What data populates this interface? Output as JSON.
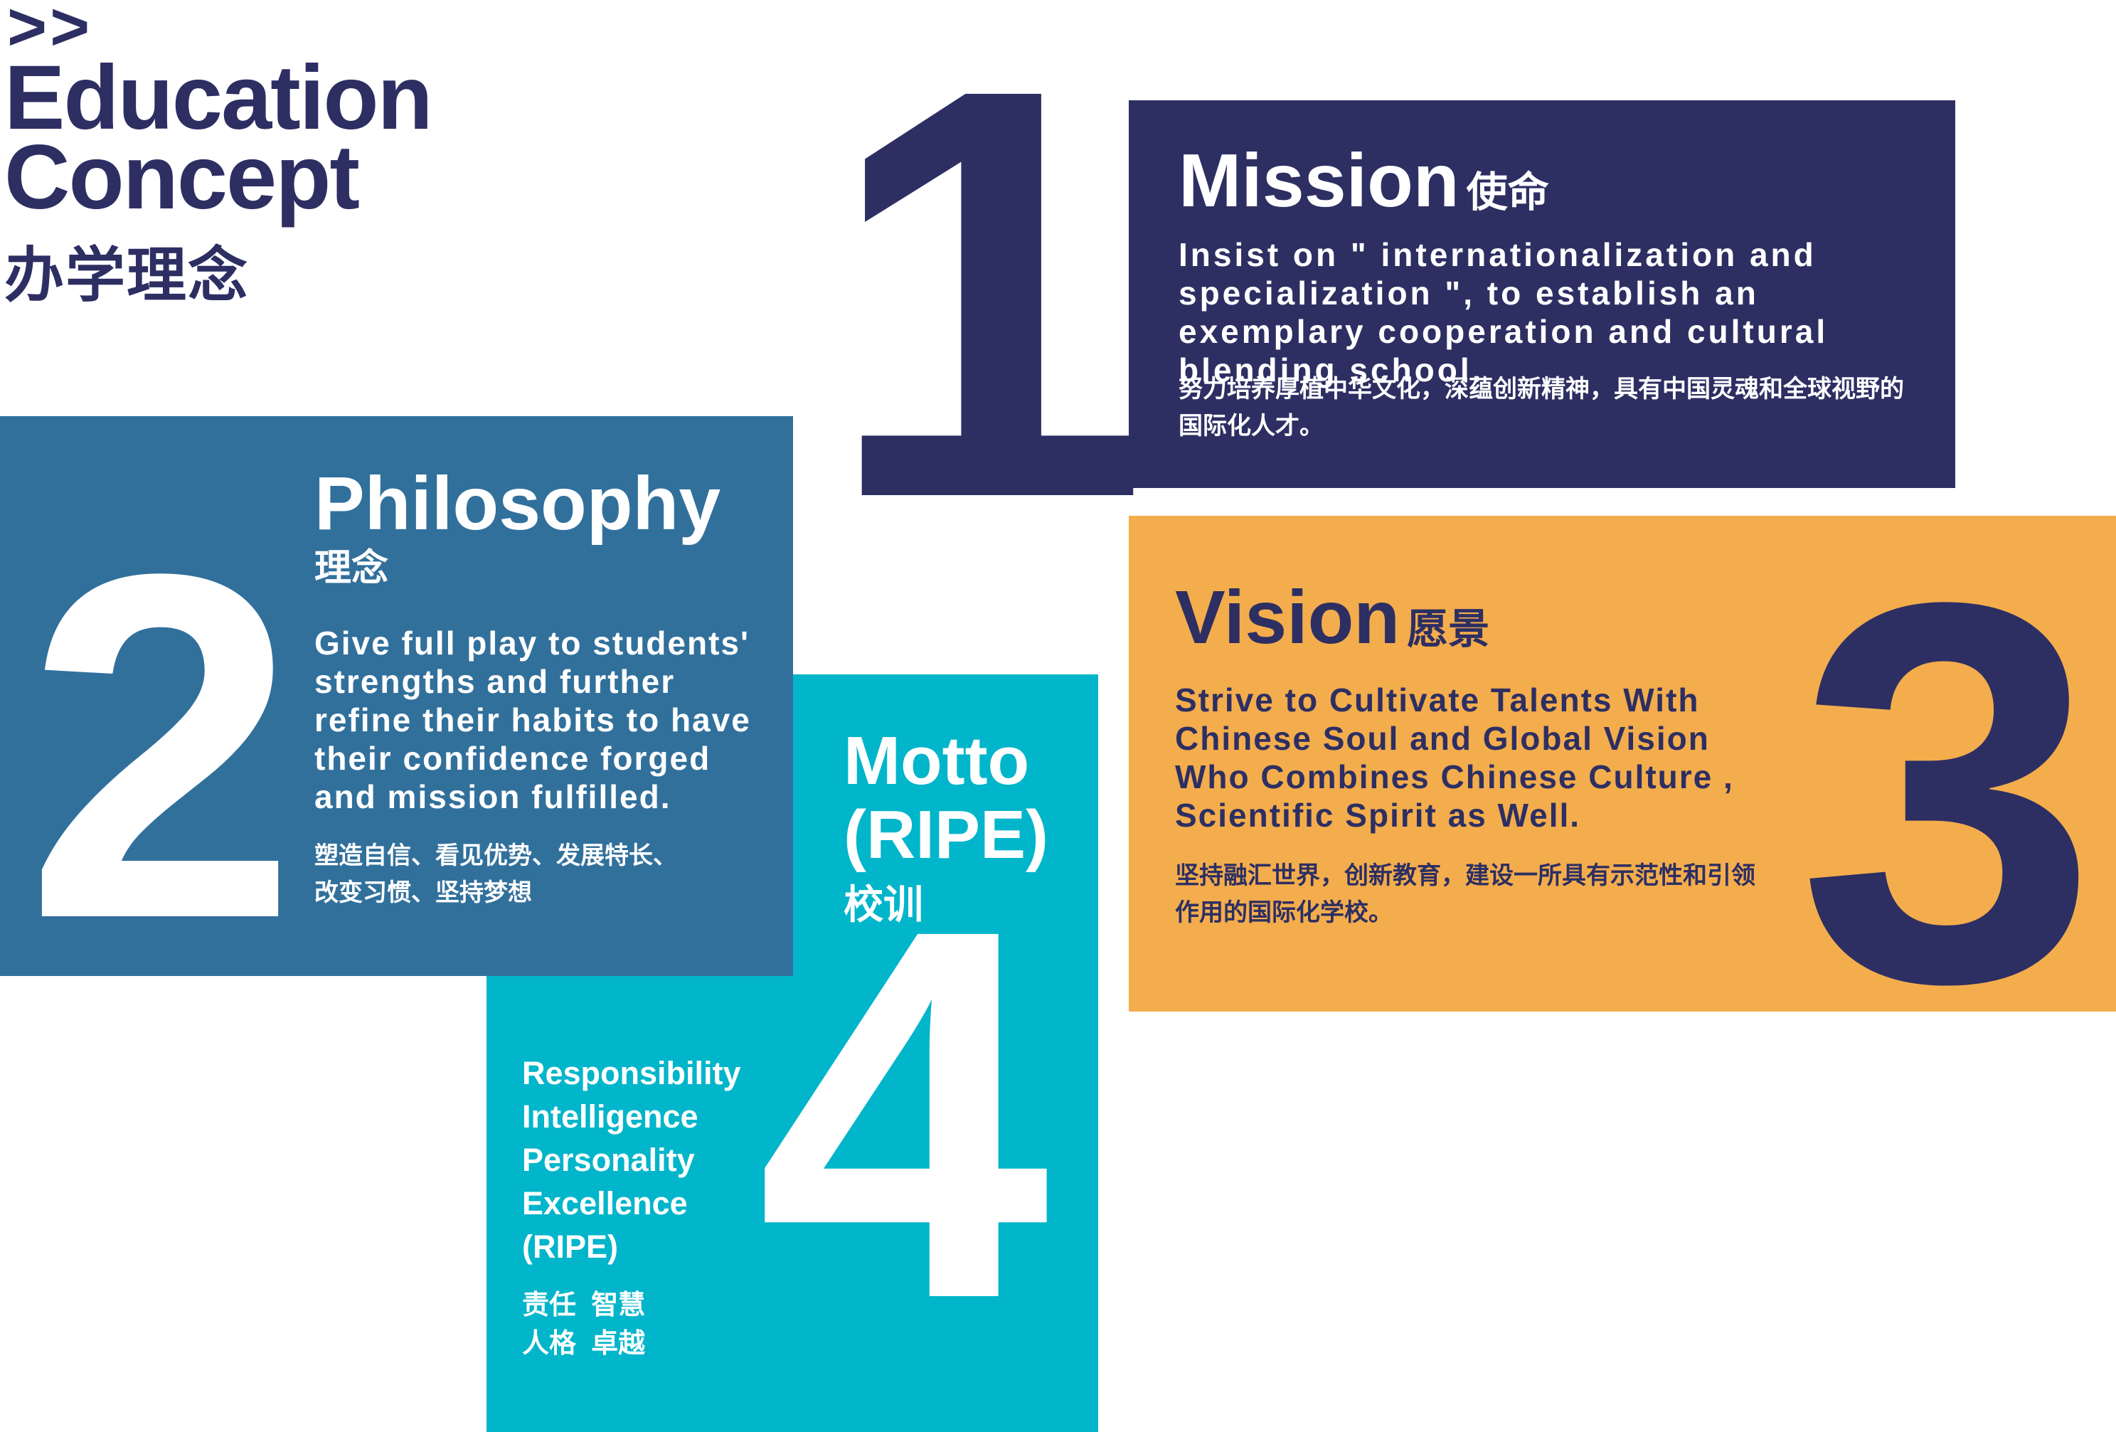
{
  "header": {
    "chevrons": ">>",
    "title_line1": "Education",
    "title_line2": "Concept",
    "title_cn": "办学理念"
  },
  "colors": {
    "navy": "#2d2f63",
    "steel_blue": "#32709c",
    "cyan": "#01b5ca",
    "orange": "#f4ad4c",
    "white": "#ffffff"
  },
  "mission": {
    "number": "1",
    "title": "Mission",
    "title_cn": "使命",
    "body": "Insist on \" internationalization and specialization \", to establish an exemplary cooperation and cultural blending school.",
    "body_cn": "努力培养厚植中华文化，深蕴创新精神，具有中国灵魂和全球视野的国际化人才。"
  },
  "philosophy": {
    "number": "2",
    "title": "Philosophy",
    "title_cn": "理念",
    "body": "Give full play to students' strengths and further refine their habits to have their confidence forged and mission fulfilled.",
    "body_cn_line1": "塑造自信、看见优势、发展特长、",
    "body_cn_line2": "改变习惯、坚持梦想"
  },
  "vision": {
    "number": "3",
    "title": "Vision",
    "title_cn": "愿景",
    "body": "Strive to Cultivate Talents With Chinese Soul and Global Vision Who Combines Chinese Culture , Scientific Spirit as Well.",
    "body_cn": "坚持融汇世界，创新教育，建设一所具有示范性和引领作用的国际化学校。"
  },
  "motto": {
    "number": "4",
    "title_line1": "Motto",
    "title_line2": "(RIPE)",
    "title_cn": "校训",
    "items": [
      "Responsibility",
      "Intelligence",
      "Personality",
      "Excellence",
      "(RIPE)"
    ],
    "cn_line1": "责任  智慧",
    "cn_line2": "人格  卓越"
  }
}
